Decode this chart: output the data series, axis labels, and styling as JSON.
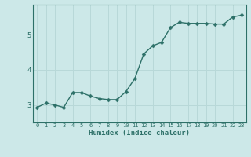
{
  "x": [
    0,
    1,
    2,
    3,
    4,
    5,
    6,
    7,
    8,
    9,
    10,
    11,
    12,
    13,
    14,
    15,
    16,
    17,
    18,
    19,
    20,
    21,
    22,
    23
  ],
  "y": [
    2.93,
    3.05,
    3.0,
    2.93,
    3.35,
    3.35,
    3.25,
    3.18,
    3.15,
    3.15,
    3.38,
    3.75,
    4.45,
    4.68,
    4.78,
    5.2,
    5.35,
    5.32,
    5.32,
    5.32,
    5.3,
    5.3,
    5.5,
    5.55
  ],
  "line_color": "#2d7068",
  "marker_color": "#2d7068",
  "bg_color": "#cce8e8",
  "grid_color": "#b8d8d8",
  "axis_color": "#2d7068",
  "xlabel": "Humidex (Indice chaleur)",
  "yticks": [
    3,
    4,
    5
  ],
  "ylim": [
    2.5,
    5.85
  ],
  "xlim": [
    -0.5,
    23.5
  ],
  "font_color": "#2d7068",
  "linewidth": 1.0,
  "markersize": 2.5,
  "xtick_fontsize": 5.0,
  "ytick_fontsize": 6.5,
  "xlabel_fontsize": 6.5
}
